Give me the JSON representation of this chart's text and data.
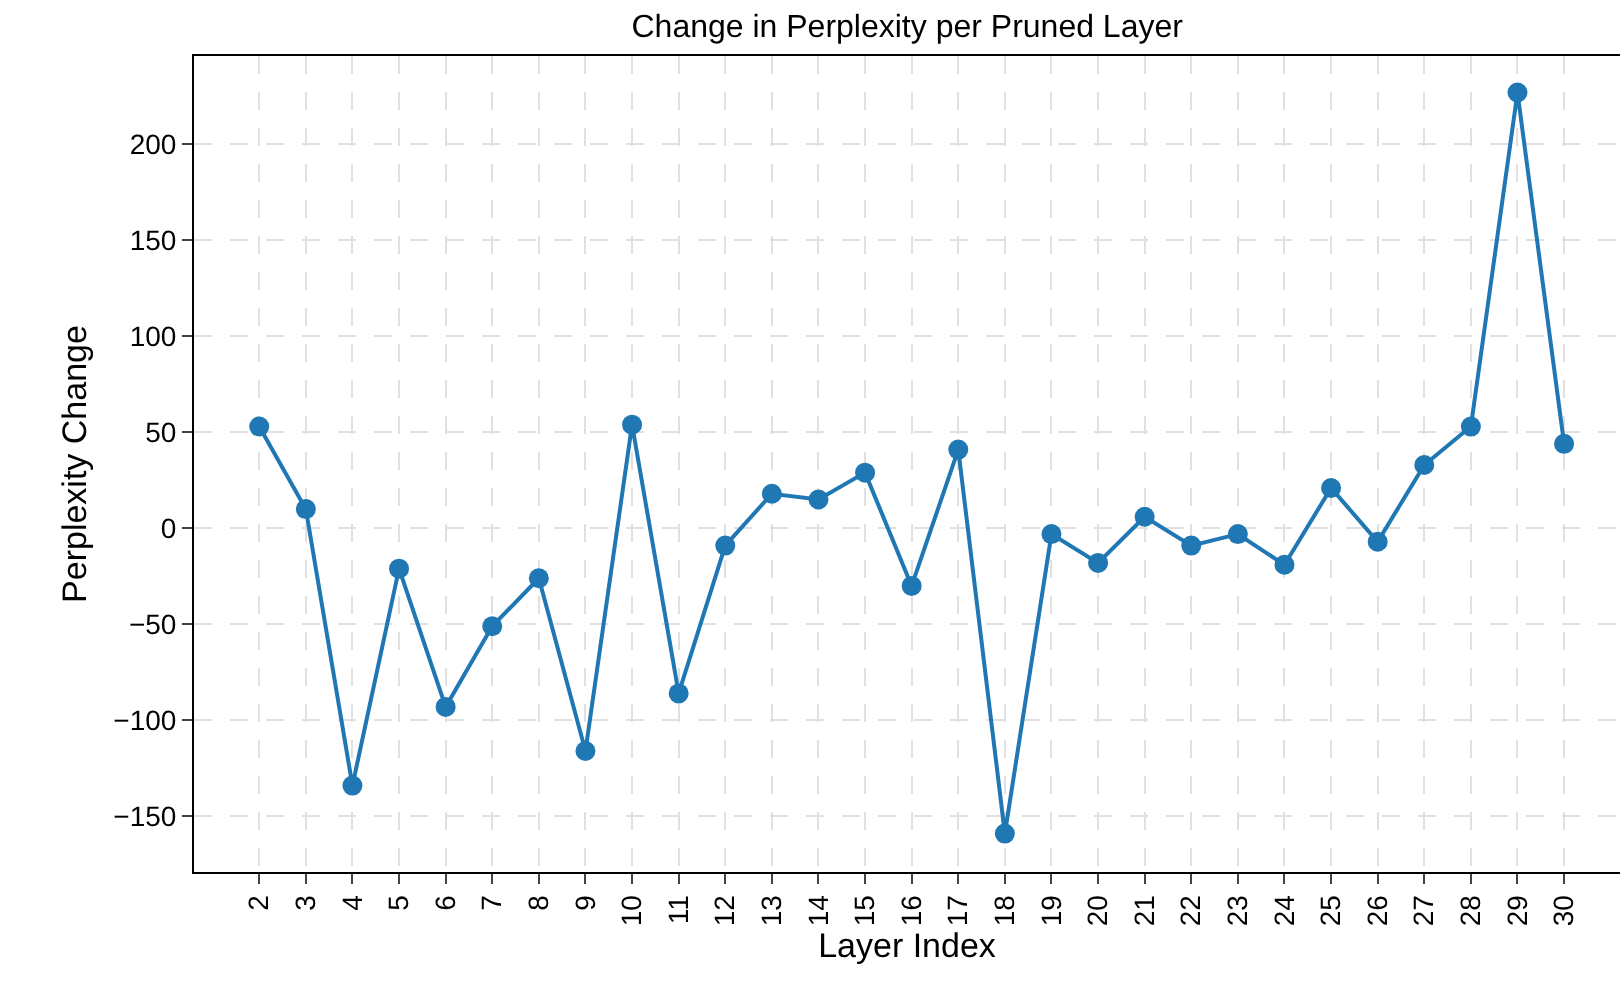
{
  "chart_data": {
    "type": "line",
    "title": "Change in Perplexity per Pruned Layer",
    "xlabel": "Layer Index",
    "ylabel": "Perplexity Change",
    "x": [
      2,
      3,
      4,
      5,
      6,
      7,
      8,
      9,
      10,
      11,
      12,
      13,
      14,
      15,
      16,
      17,
      18,
      19,
      20,
      21,
      22,
      23,
      24,
      25,
      26,
      27,
      28,
      29,
      30
    ],
    "series": [
      {
        "color": "#1f77b4",
        "values": [
          53,
          10,
          -134,
          -21,
          -93,
          -51,
          -26,
          -116,
          54,
          -86,
          -9,
          18,
          15,
          29,
          -30,
          41,
          -159,
          -3,
          -18,
          6,
          -9,
          -3,
          -19,
          21,
          -7,
          33,
          53,
          227,
          44
        ]
      }
    ],
    "xlim": [
      0.6,
      31.2
    ],
    "xticks": [
      2,
      3,
      4,
      5,
      6,
      7,
      8,
      9,
      10,
      11,
      12,
      13,
      14,
      15,
      16,
      17,
      18,
      19,
      20,
      21,
      22,
      23,
      24,
      25,
      26,
      27,
      28,
      29,
      30
    ],
    "ylim": [
      -179,
      246
    ],
    "yticks": [
      -150,
      -100,
      -50,
      0,
      50,
      100,
      150,
      200
    ],
    "grid": true,
    "marker": "circle",
    "line_style": "solid"
  }
}
